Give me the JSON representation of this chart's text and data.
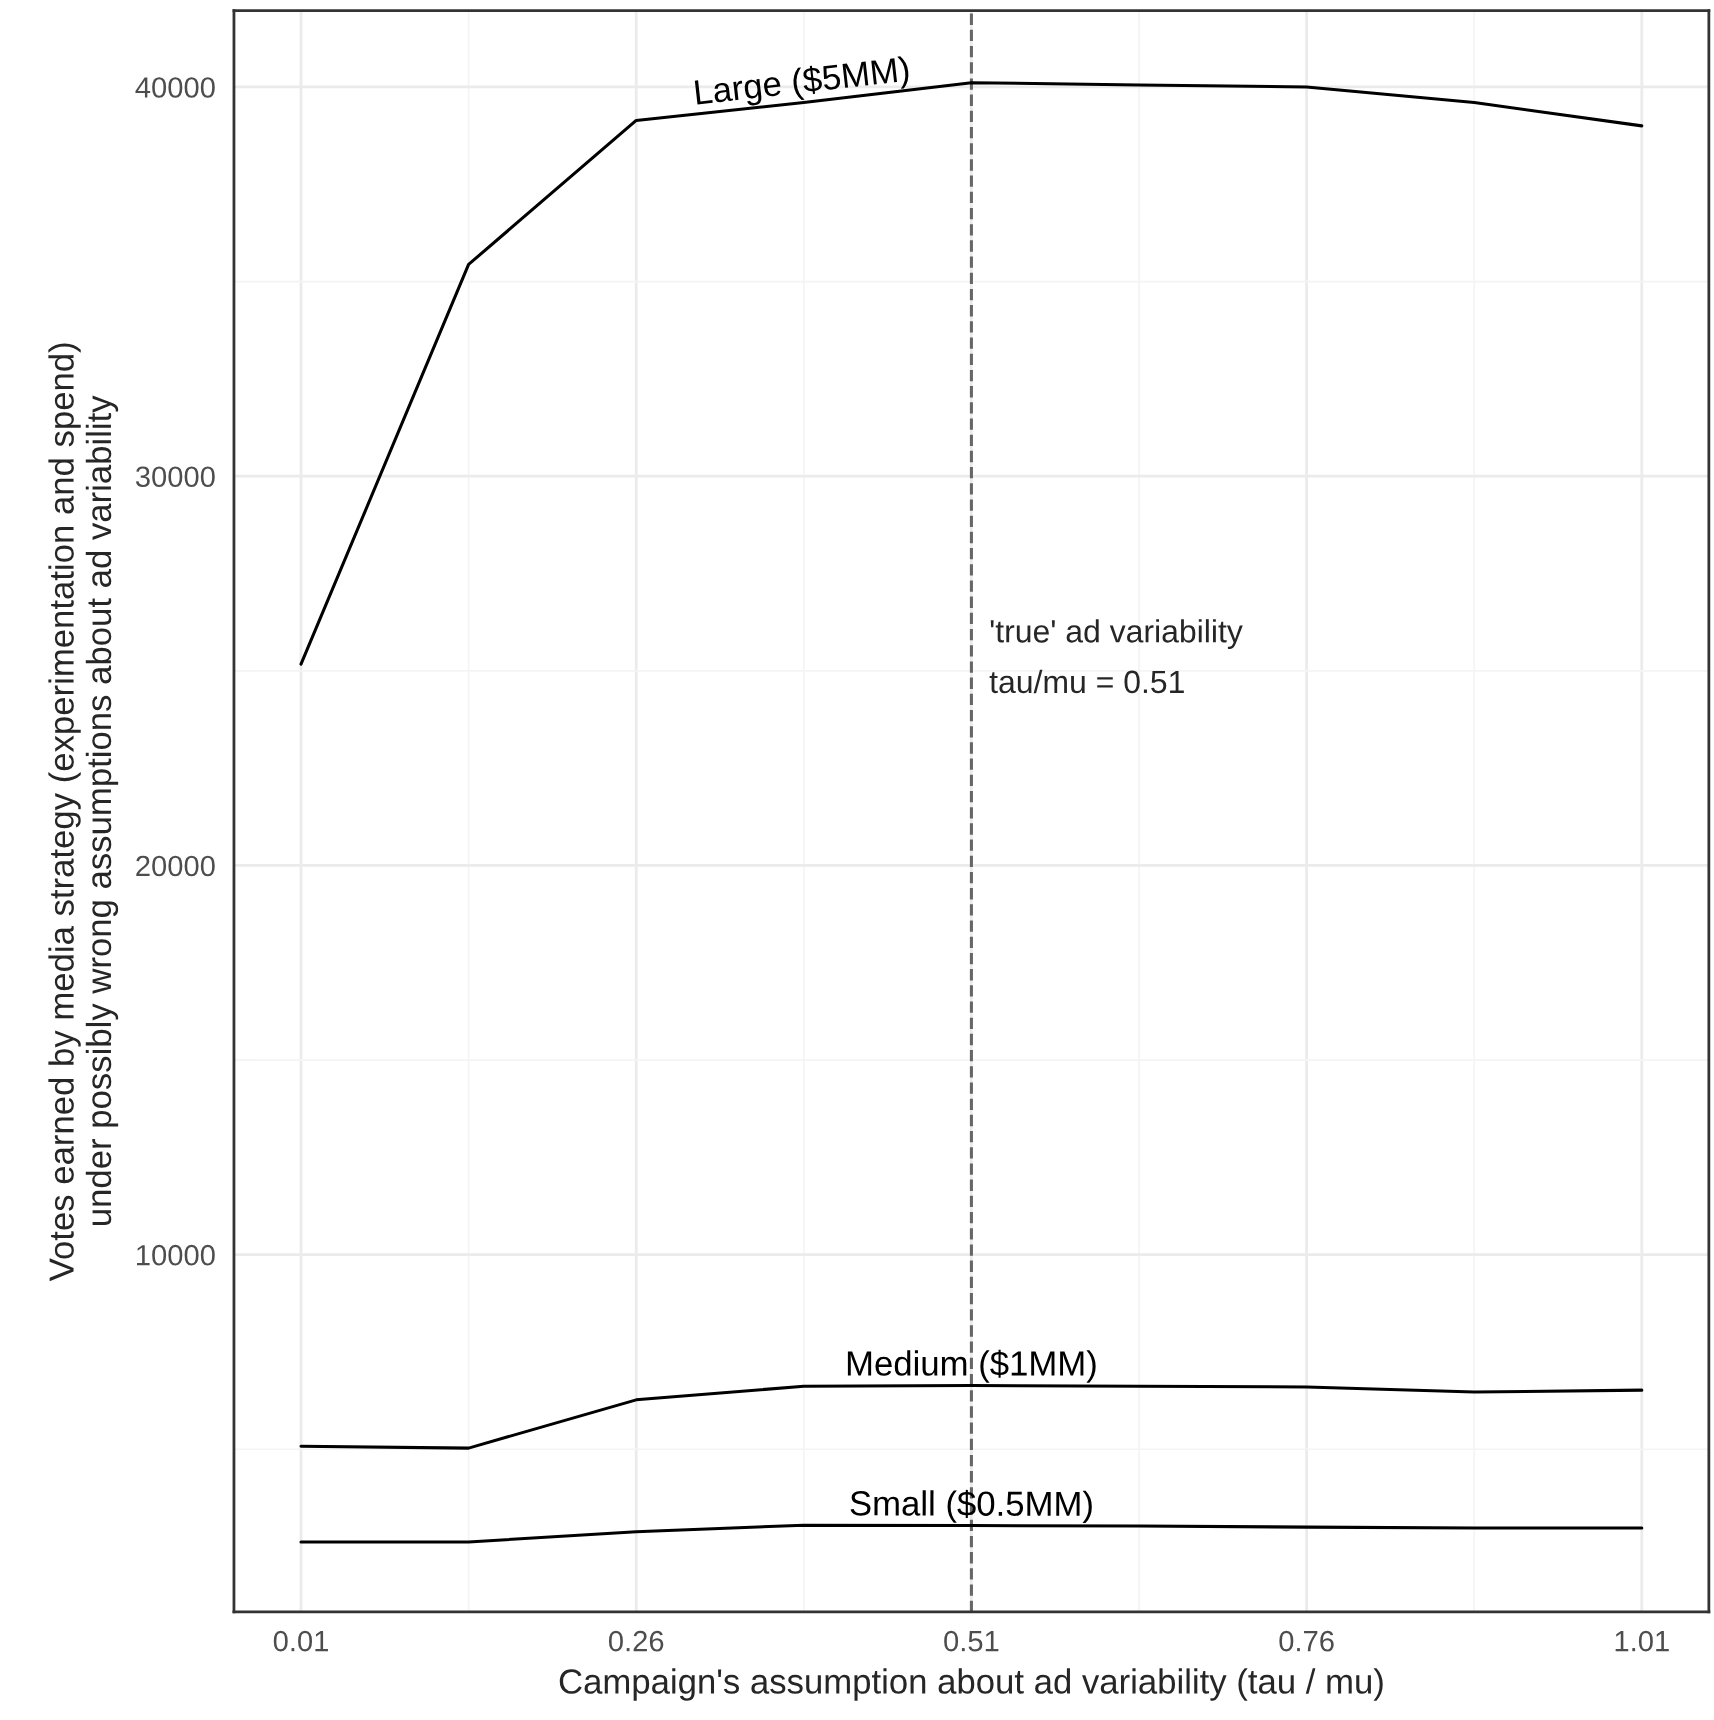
{
  "chart_data": {
    "type": "line",
    "xlabel": "Campaign's assumption about ad variability (tau / mu)",
    "ylabel": "Votes earned by media strategy (experimentation and spend)\nunder possibly wrong assumptions about ad variability",
    "x": [
      0.01,
      0.135,
      0.26,
      0.385,
      0.51,
      0.635,
      0.76,
      0.885,
      1.01
    ],
    "series": [
      {
        "name": "Large ($5MM)",
        "color": "#000000",
        "values": [
          25170,
          35440,
          39140,
          39600,
          40110,
          40050,
          40000,
          39600,
          39000
        ]
      },
      {
        "name": "Medium ($1MM)",
        "color": "#000000",
        "values": [
          5080,
          5030,
          6270,
          6620,
          6640,
          6620,
          6600,
          6470,
          6520
        ]
      },
      {
        "name": "Small ($0.5MM)",
        "color": "#000000",
        "values": [
          2620,
          2620,
          2880,
          3050,
          3040,
          3030,
          3000,
          2980,
          2980
        ]
      }
    ],
    "xlim": [
      -0.04,
      1.06
    ],
    "ylim": [
      820,
      41960
    ],
    "xticks": [
      0.01,
      0.26,
      0.51,
      0.76,
      1.01
    ],
    "yticks": [
      10000,
      20000,
      30000,
      40000
    ],
    "ref_lines": [
      {
        "axis": "x",
        "value": 0.51,
        "label": "'true' ad variability\ntau/mu = 0.51",
        "color": "#666666",
        "line_style": "dashed"
      }
    ],
    "grid": true,
    "legend": false,
    "line_style": "solid",
    "marker": "none"
  }
}
